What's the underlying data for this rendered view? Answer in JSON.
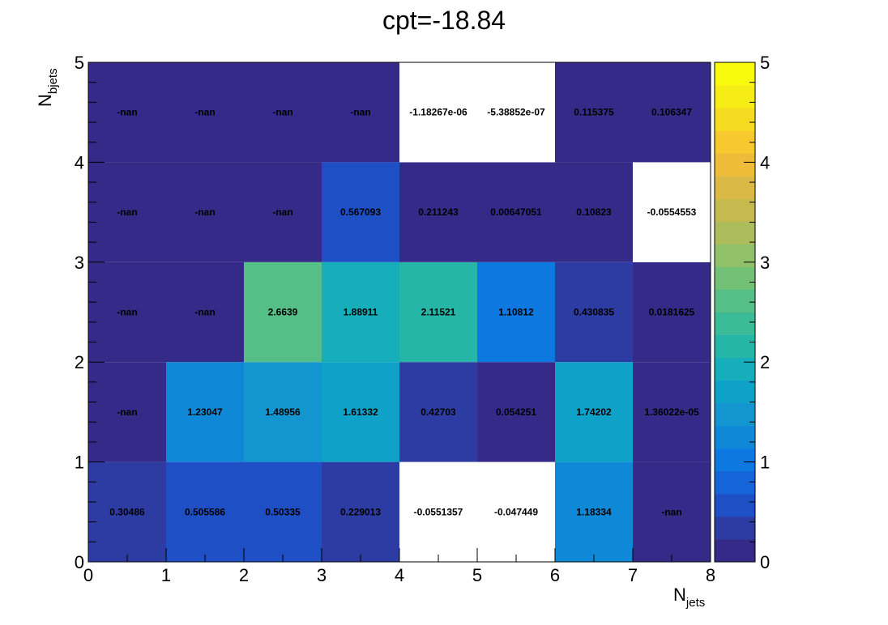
{
  "chart_data": {
    "type": "heatmap",
    "title": "cpt=-18.84",
    "xlabel_main": "N",
    "xlabel_sub": "jets",
    "ylabel_main": "N",
    "ylabel_sub": "bjets",
    "x_edges": [
      0,
      1,
      2,
      3,
      4,
      5,
      6,
      7,
      8
    ],
    "y_edges": [
      0,
      1,
      2,
      3,
      4,
      5
    ],
    "x_ticks": [
      "0",
      "1",
      "2",
      "3",
      "4",
      "5",
      "6",
      "7",
      "8"
    ],
    "y_ticks": [
      "0",
      "1",
      "2",
      "3",
      "4",
      "5"
    ],
    "zlim": [
      0,
      5
    ],
    "z_ticks": [
      "0",
      "1",
      "2",
      "3",
      "4",
      "5"
    ],
    "colormap_stops": [
      "#352a87",
      "#2d3ca3",
      "#1f4fc4",
      "#1565d8",
      "#0c78e0",
      "#0f88d8",
      "#1395cf",
      "#0fa2c8",
      "#15aeba",
      "#25b6a8",
      "#3bbb98",
      "#55bf87",
      "#72c177",
      "#90c068",
      "#adbd5b",
      "#c6ba4f",
      "#dbb947",
      "#efbc3a",
      "#f8c92e",
      "#f6dc21",
      "#f5ed15",
      "#f9fb0e"
    ],
    "below_min_color": "#ffffff",
    "rows": [
      {
        "y": 0,
        "values": [
          0.30486,
          0.505586,
          0.50335,
          0.229013,
          -0.0551357,
          -0.047449,
          1.18334,
          null
        ],
        "labels": [
          "0.30486",
          "0.505586",
          "0.50335",
          "0.229013",
          "-0.0551357",
          "-0.047449",
          "1.18334",
          "-nan"
        ]
      },
      {
        "y": 1,
        "values": [
          null,
          1.23047,
          1.48956,
          1.61332,
          0.42703,
          0.054251,
          1.74202,
          1.36022e-05
        ],
        "labels": [
          "-nan",
          "1.23047",
          "1.48956",
          "1.61332",
          "0.42703",
          "0.054251",
          "1.74202",
          "1.36022e-05"
        ]
      },
      {
        "y": 2,
        "values": [
          null,
          null,
          2.6639,
          1.88911,
          2.11521,
          1.10812,
          0.430835,
          0.0181625
        ],
        "labels": [
          "-nan",
          "-nan",
          "2.6639",
          "1.88911",
          "2.11521",
          "1.10812",
          "0.430835",
          "0.0181625"
        ]
      },
      {
        "y": 3,
        "values": [
          null,
          null,
          null,
          0.567093,
          0.211243,
          0.00647051,
          0.10823,
          -0.0554553
        ],
        "labels": [
          "-nan",
          "-nan",
          "-nan",
          "0.567093",
          "0.211243",
          "0.00647051",
          "0.10823",
          "-0.0554553"
        ]
      },
      {
        "y": 4,
        "values": [
          null,
          null,
          null,
          null,
          -1.18267e-06,
          -5.38852e-07,
          0.115375,
          0.106347
        ],
        "labels": [
          "-nan",
          "-nan",
          "-nan",
          "-nan",
          "-1.18267e-06",
          "-5.38852e-07",
          "0.115375",
          "0.106347"
        ]
      }
    ]
  }
}
